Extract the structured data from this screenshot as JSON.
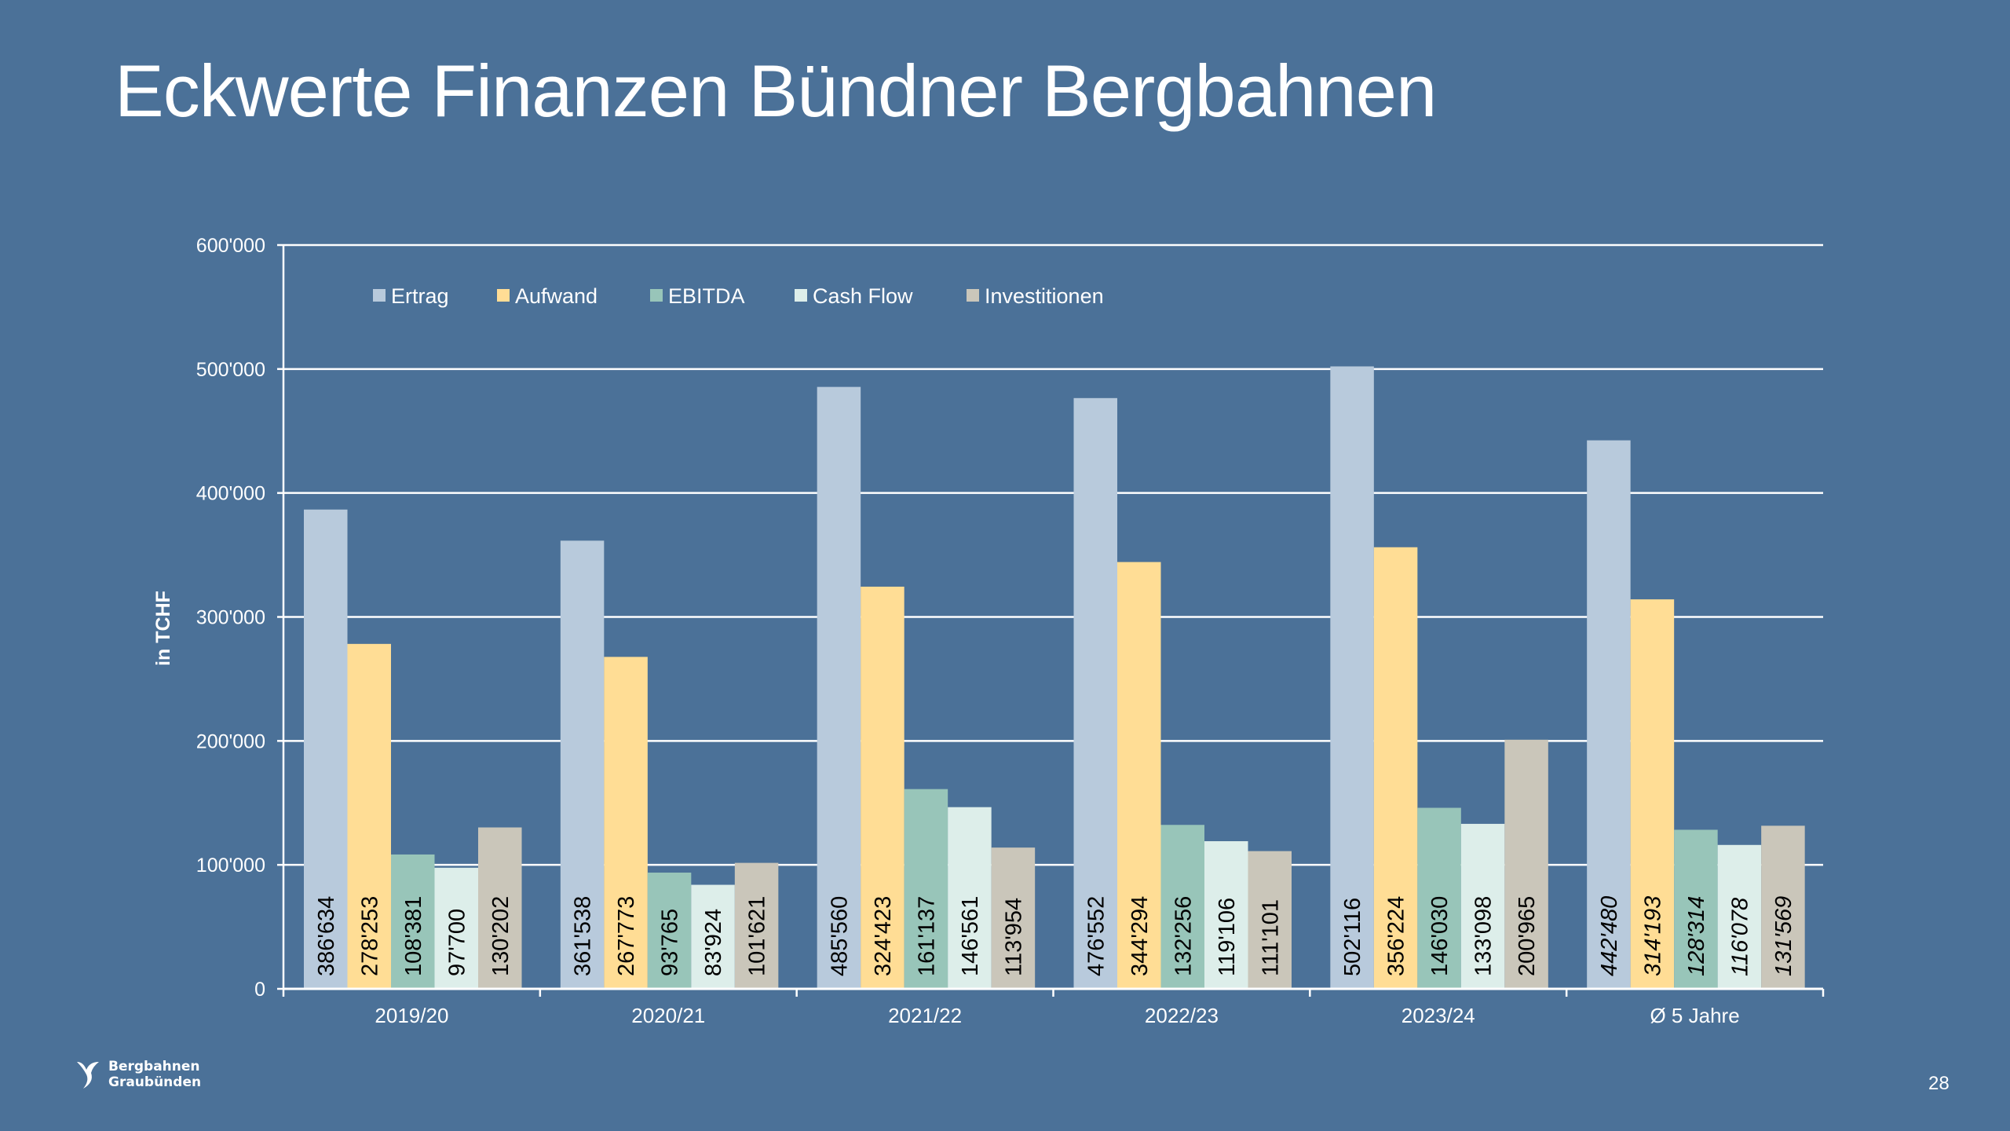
{
  "slide": {
    "title": "Eckwerte Finanzen Bündner Bergbahnen",
    "page_number": "28",
    "logo_text": [
      "Bergbahnen",
      "Graubünden"
    ]
  },
  "chart_data": {
    "type": "bar",
    "title": "",
    "ylabel": "in TCHF",
    "xlabel": "",
    "ylim": [
      0,
      600000
    ],
    "yticks": [
      0,
      100000,
      200000,
      300000,
      400000,
      500000,
      600000
    ],
    "ytick_labels": [
      "0",
      "100'000",
      "200'000",
      "300'000",
      "400'000",
      "500'000",
      "600'000"
    ],
    "grid": true,
    "legend_placement": "top-left",
    "categories": [
      "2019/20",
      "2020/21",
      "2021/22",
      "2022/23",
      "2023/24",
      "Ø 5 Jahre"
    ],
    "italic_category": "Ø 5 Jahre",
    "series": [
      {
        "name": "Ertrag",
        "color": "#b8cadc",
        "values": [
          386634,
          361538,
          485560,
          476552,
          502116,
          442480
        ],
        "labels": [
          "386'634",
          "361'538",
          "485'560",
          "476'552",
          "502'116",
          "442'480"
        ]
      },
      {
        "name": "Aufwand",
        "color": "#ffdd95",
        "values": [
          278253,
          267773,
          324423,
          344294,
          356224,
          314193
        ],
        "labels": [
          "278'253",
          "267'773",
          "324'423",
          "344'294",
          "356'224",
          "314'193"
        ]
      },
      {
        "name": "EBITDA",
        "color": "#98c5b9",
        "values": [
          108381,
          93765,
          161137,
          132256,
          146030,
          128314
        ],
        "labels": [
          "108'381",
          "93'765",
          "161'137",
          "132'256",
          "146'030",
          "128'314"
        ]
      },
      {
        "name": "Cash Flow",
        "color": "#ddeeea",
        "values": [
          97700,
          83924,
          146561,
          119106,
          133098,
          116078
        ],
        "labels": [
          "97'700",
          "83'924",
          "146'561",
          "119'106",
          "133'098",
          "116'078"
        ]
      },
      {
        "name": "Investitionen",
        "color": "#cac6ba",
        "values": [
          130202,
          101621,
          113954,
          111101,
          200965,
          131569
        ],
        "labels": [
          "130'202",
          "101'621",
          "113'954",
          "111'101",
          "200'965",
          "131'569"
        ]
      }
    ]
  }
}
